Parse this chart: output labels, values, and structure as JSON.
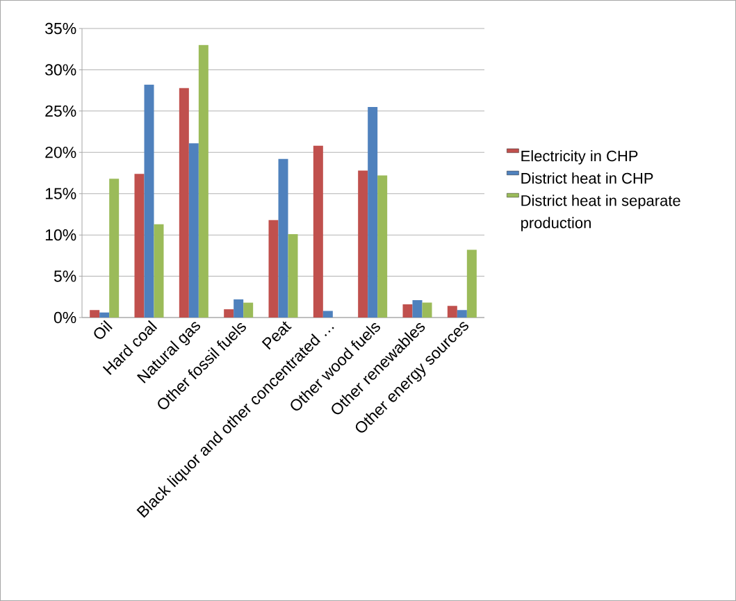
{
  "chart_data": {
    "type": "bar",
    "categories": [
      "Oil",
      "Hard coal",
      "Natural gas",
      "Other fossil fuels",
      "Peat",
      "Black liquor and other concentrated …",
      "Other wood fuels",
      "Other renewables",
      "Other energy sources"
    ],
    "series": [
      {
        "name": "Electricity in CHP",
        "color": "#c0504d",
        "values": [
          0.9,
          17.4,
          27.8,
          1.0,
          11.8,
          20.8,
          17.8,
          1.6,
          1.4
        ]
      },
      {
        "name": "District heat in CHP",
        "color": "#4f81bd",
        "values": [
          0.6,
          28.2,
          21.1,
          2.2,
          19.2,
          0.8,
          25.5,
          2.1,
          0.9
        ]
      },
      {
        "name": "District heat in separate production",
        "color": "#9bbb59",
        "values": [
          16.8,
          11.3,
          33.0,
          1.8,
          10.1,
          null,
          17.2,
          1.8,
          8.2
        ]
      }
    ],
    "ylim": [
      0,
      35
    ],
    "yticks": [
      {
        "value": 0,
        "label": "0%"
      },
      {
        "value": 5,
        "label": "5%"
      },
      {
        "value": 10,
        "label": "10%"
      },
      {
        "value": 15,
        "label": "15%"
      },
      {
        "value": 20,
        "label": "20%"
      },
      {
        "value": 25,
        "label": "25%"
      },
      {
        "value": 30,
        "label": "30%"
      },
      {
        "value": 35,
        "label": "35%"
      }
    ],
    "grid": "y",
    "legend": "right"
  }
}
